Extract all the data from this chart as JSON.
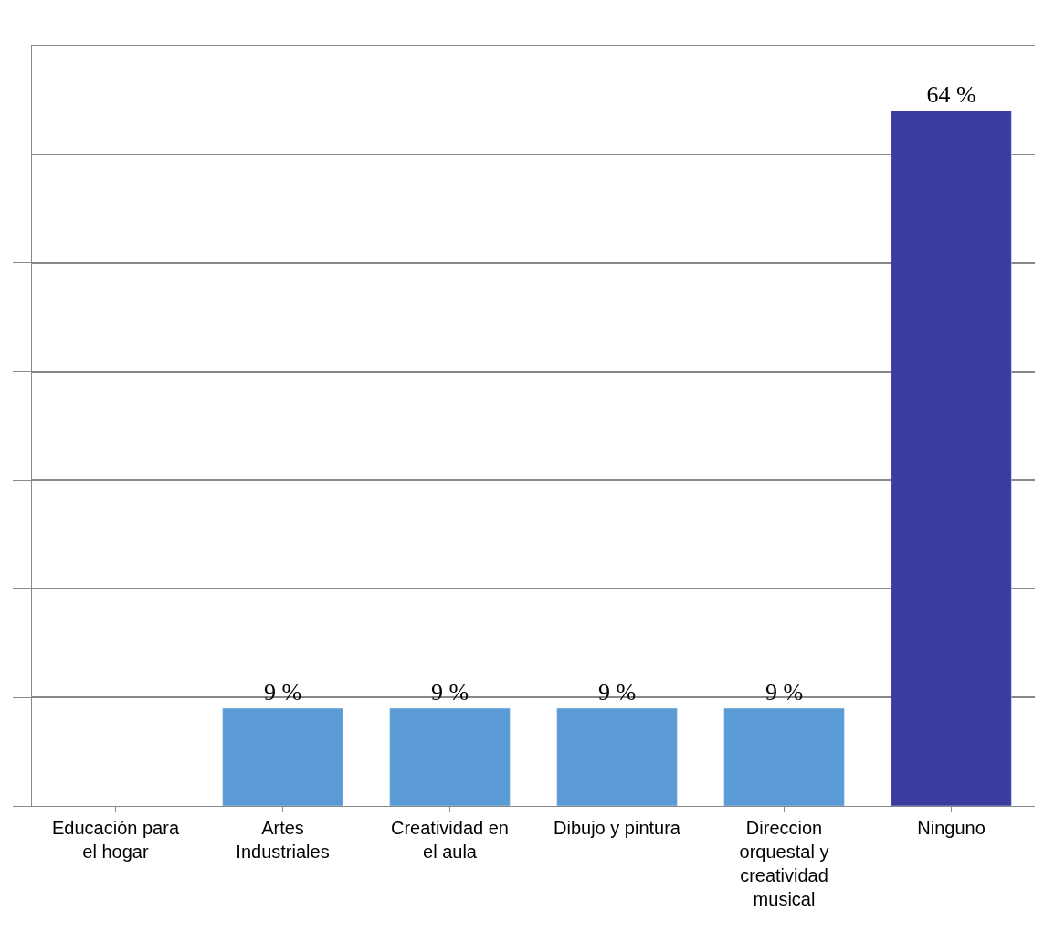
{
  "chart_data": {
    "type": "bar",
    "categories": [
      "Educación para el hogar",
      "Artes Industriales",
      "Creatividad en el aula",
      "Dibujo y pintura",
      "Direccion orquestal y creatividad musical",
      "Ninguno"
    ],
    "values": [
      null,
      9,
      9,
      9,
      9,
      64
    ],
    "colors": [
      null,
      "#5b9bd5",
      "#5b9bd5",
      "#5b9bd5",
      "#5b9bd5",
      "#3c3ca0"
    ],
    "value_labels": [
      null,
      "9 %",
      "9 %",
      "9 %",
      "9 %",
      "64 %"
    ],
    "ylim": [
      0,
      70
    ],
    "yticks": [
      {
        "value": 0,
        "label": null
      },
      {
        "value": 10,
        "label": null
      },
      {
        "value": 20,
        "label": null
      },
      {
        "value": 30,
        "label": null
      },
      {
        "value": 40,
        "label": null
      },
      {
        "value": 50,
        "label": null
      },
      {
        "value": 60,
        "label": null
      }
    ],
    "grid": "y",
    "tick_labels": "x"
  }
}
